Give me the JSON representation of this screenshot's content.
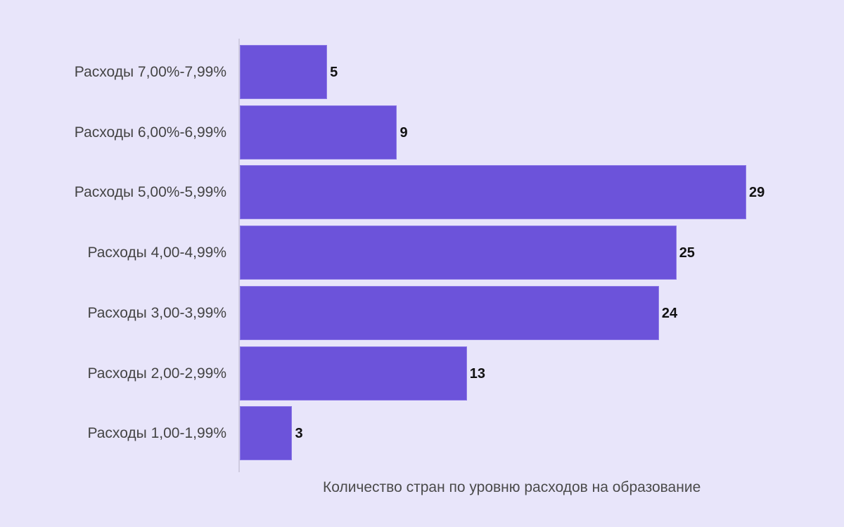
{
  "chart_data": {
    "type": "bar",
    "orientation": "horizontal",
    "title": "",
    "xlabel": "Количество стран по уровню расходов на образование",
    "ylabel": "",
    "categories": [
      "Расходы 7,00%-7,99%",
      "Расходы 6,00%-6,99%",
      "Расходы 5,00%-5,99%",
      "Расходы 4,00-4,99%",
      "Расходы 3,00-3,99%",
      "Расходы 2,00-2,99%",
      "Расходы 1,00-1,99%"
    ],
    "values": [
      5,
      9,
      29,
      25,
      24,
      13,
      3
    ],
    "data_labels": [
      "5",
      "9",
      "29",
      "25",
      "24",
      "13",
      "3"
    ],
    "xlim": [
      0,
      29
    ],
    "grid": false,
    "legend": null,
    "colors": {
      "bar": "#6c53da",
      "background": "#e8e5fa",
      "axis": "#cfcbe0"
    }
  }
}
